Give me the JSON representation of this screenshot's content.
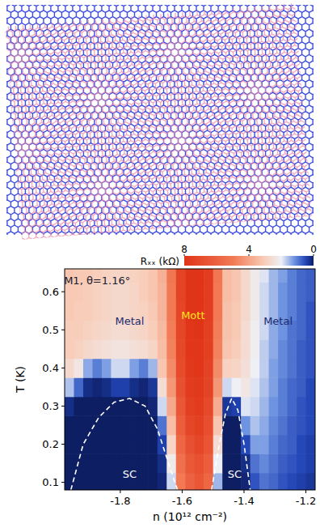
{
  "chart_data": {
    "type": "heatmap",
    "xlabel": "n (10¹² cm⁻²)",
    "ylabel": "T (K)",
    "xlim": [
      -1.98,
      -1.17
    ],
    "ylim": [
      0.08,
      0.66
    ],
    "xticks": [
      -1.8,
      -1.6,
      -1.4,
      -1.2
    ],
    "yticks": [
      0.1,
      0.2,
      0.3,
      0.4,
      0.5,
      0.6
    ],
    "x": [
      -1.965,
      -1.935,
      -1.905,
      -1.875,
      -1.845,
      -1.815,
      -1.785,
      -1.755,
      -1.725,
      -1.695,
      -1.665,
      -1.635,
      -1.605,
      -1.575,
      -1.545,
      -1.515,
      -1.485,
      -1.455,
      -1.425,
      -1.395,
      -1.365,
      -1.335,
      -1.305,
      -1.275,
      -1.245,
      -1.215,
      -1.185
    ],
    "y": [
      0.1,
      0.15,
      0.2,
      0.25,
      0.3,
      0.35,
      0.4,
      0.45,
      0.5,
      0.55,
      0.6,
      0.65
    ],
    "z": [
      [
        0,
        0,
        0,
        0,
        0,
        0,
        0,
        0,
        0,
        0,
        0.1,
        1.8,
        5.0,
        6.0,
        6.5,
        5.8,
        1.5,
        0,
        0,
        0.1,
        0.6,
        0.9,
        0.8,
        0.6,
        0.5,
        0.4,
        0.3
      ],
      [
        0,
        0,
        0,
        0,
        0,
        0,
        0,
        0,
        0,
        0,
        0.2,
        2.2,
        5.4,
        6.4,
        6.8,
        6.2,
        2.0,
        0,
        0,
        0.2,
        0.9,
        1.1,
        0.9,
        0.7,
        0.6,
        0.5,
        0.4
      ],
      [
        0,
        0,
        0,
        0,
        0,
        0,
        0,
        0,
        0,
        0,
        0.4,
        2.8,
        5.8,
        6.8,
        7.2,
        6.6,
        2.6,
        0,
        0,
        0.5,
        1.3,
        1.3,
        1.0,
        0.8,
        0.7,
        0.5,
        0.4
      ],
      [
        0,
        0,
        0,
        0,
        0,
        0,
        0,
        0,
        0,
        0,
        0.9,
        3.4,
        6.2,
        7.2,
        7.5,
        6.9,
        3.2,
        0,
        0,
        1.2,
        1.6,
        1.4,
        1.1,
        0.9,
        0.7,
        0.6,
        0.5
      ],
      [
        0.2,
        0,
        0,
        0,
        0,
        0,
        0,
        0,
        0,
        0.1,
        1.8,
        3.9,
        6.5,
        7.5,
        7.7,
        7.1,
        3.8,
        0.3,
        0.4,
        1.9,
        1.8,
        1.5,
        1.2,
        1.0,
        0.8,
        0.6,
        0.5
      ],
      [
        1.6,
        0.8,
        0.2,
        0.1,
        0.2,
        0.4,
        0.4,
        0.2,
        0.1,
        0.3,
        2.6,
        4.3,
        6.8,
        7.7,
        7.8,
        7.3,
        4.3,
        1.8,
        2.0,
        2.3,
        1.9,
        1.6,
        1.3,
        1.0,
        0.8,
        0.7,
        0.5
      ],
      [
        2.7,
        2.3,
        1.4,
        1.0,
        1.3,
        1.8,
        1.8,
        1.3,
        1.0,
        1.5,
        3.2,
        4.6,
        7.0,
        7.8,
        7.9,
        7.4,
        4.6,
        2.9,
        2.8,
        2.5,
        2.0,
        1.7,
        1.3,
        1.1,
        0.9,
        0.7,
        0.6
      ],
      [
        3.0,
        2.9,
        2.7,
        2.6,
        2.5,
        2.4,
        2.4,
        2.5,
        2.6,
        2.8,
        3.4,
        4.8,
        7.1,
        7.9,
        7.9,
        7.5,
        4.8,
        3.2,
        3.0,
        2.6,
        2.1,
        1.7,
        1.4,
        1.1,
        0.9,
        0.7,
        0.6
      ],
      [
        3.0,
        3.0,
        2.9,
        2.8,
        2.7,
        2.6,
        2.6,
        2.7,
        2.8,
        3.0,
        3.5,
        4.9,
        7.2,
        7.9,
        8.0,
        7.5,
        4.9,
        3.3,
        3.1,
        2.6,
        2.1,
        1.8,
        1.4,
        1.2,
        0.9,
        0.8,
        0.6
      ],
      [
        3.1,
        3.0,
        3.0,
        2.9,
        2.8,
        2.7,
        2.7,
        2.8,
        2.9,
        3.1,
        3.6,
        5.0,
        7.2,
        8.0,
        8.0,
        7.6,
        5.0,
        3.3,
        3.1,
        2.7,
        2.2,
        1.8,
        1.5,
        1.2,
        1.0,
        0.8,
        0.6
      ],
      [
        3.1,
        3.1,
        3.0,
        2.9,
        2.8,
        2.7,
        2.7,
        2.8,
        3.0,
        3.2,
        3.6,
        5.0,
        7.3,
        8.0,
        8.0,
        7.6,
        5.0,
        3.4,
        3.2,
        2.7,
        2.2,
        1.8,
        1.5,
        1.2,
        1.0,
        0.8,
        0.7
      ],
      [
        3.2,
        3.1,
        3.1,
        3.0,
        2.9,
        2.8,
        2.8,
        2.9,
        3.0,
        3.2,
        3.7,
        5.1,
        7.3,
        8.0,
        8.0,
        7.6,
        5.1,
        3.4,
        3.2,
        2.7,
        2.2,
        1.9,
        1.5,
        1.3,
        1.0,
        0.8,
        0.7
      ]
    ],
    "colorbar": {
      "label": "Rₓₓ (kΩ)",
      "range": [
        8,
        0
      ],
      "ticks": [
        8,
        4,
        0
      ]
    },
    "series": [
      {
        "type": "line",
        "line_style": "dashed",
        "color": "#ffffff",
        "x": [
          -1.96,
          -1.92,
          -1.87,
          -1.82,
          -1.77,
          -1.72,
          -1.68,
          -1.64,
          -1.615
        ],
        "values": [
          0.08,
          0.2,
          0.27,
          0.31,
          0.32,
          0.3,
          0.24,
          0.14,
          0.08
        ]
      },
      {
        "type": "line",
        "line_style": "dashed",
        "color": "#ffffff",
        "x": [
          -1.505,
          -1.48,
          -1.46,
          -1.44,
          -1.42,
          -1.4,
          -1.38
        ],
        "values": [
          0.08,
          0.2,
          0.28,
          0.32,
          0.29,
          0.2,
          0.08
        ]
      }
    ],
    "annotations": [
      {
        "text": "M1, θ=1.16°",
        "x": -1.875,
        "y": 0.628,
        "color": "#1a1a2e"
      },
      {
        "text": "Metal",
        "x": -1.77,
        "y": 0.52,
        "color": "#1c2a6e"
      },
      {
        "text": "Mott",
        "x": -1.565,
        "y": 0.535,
        "color": "#ffe41c"
      },
      {
        "text": "Metal",
        "x": -1.29,
        "y": 0.52,
        "color": "#1c2a6e"
      },
      {
        "text": "SC",
        "x": -1.77,
        "y": 0.12,
        "color": "#ffffff"
      },
      {
        "text": "SC",
        "x": -1.43,
        "y": 0.12,
        "color": "#ffffff"
      }
    ]
  }
}
